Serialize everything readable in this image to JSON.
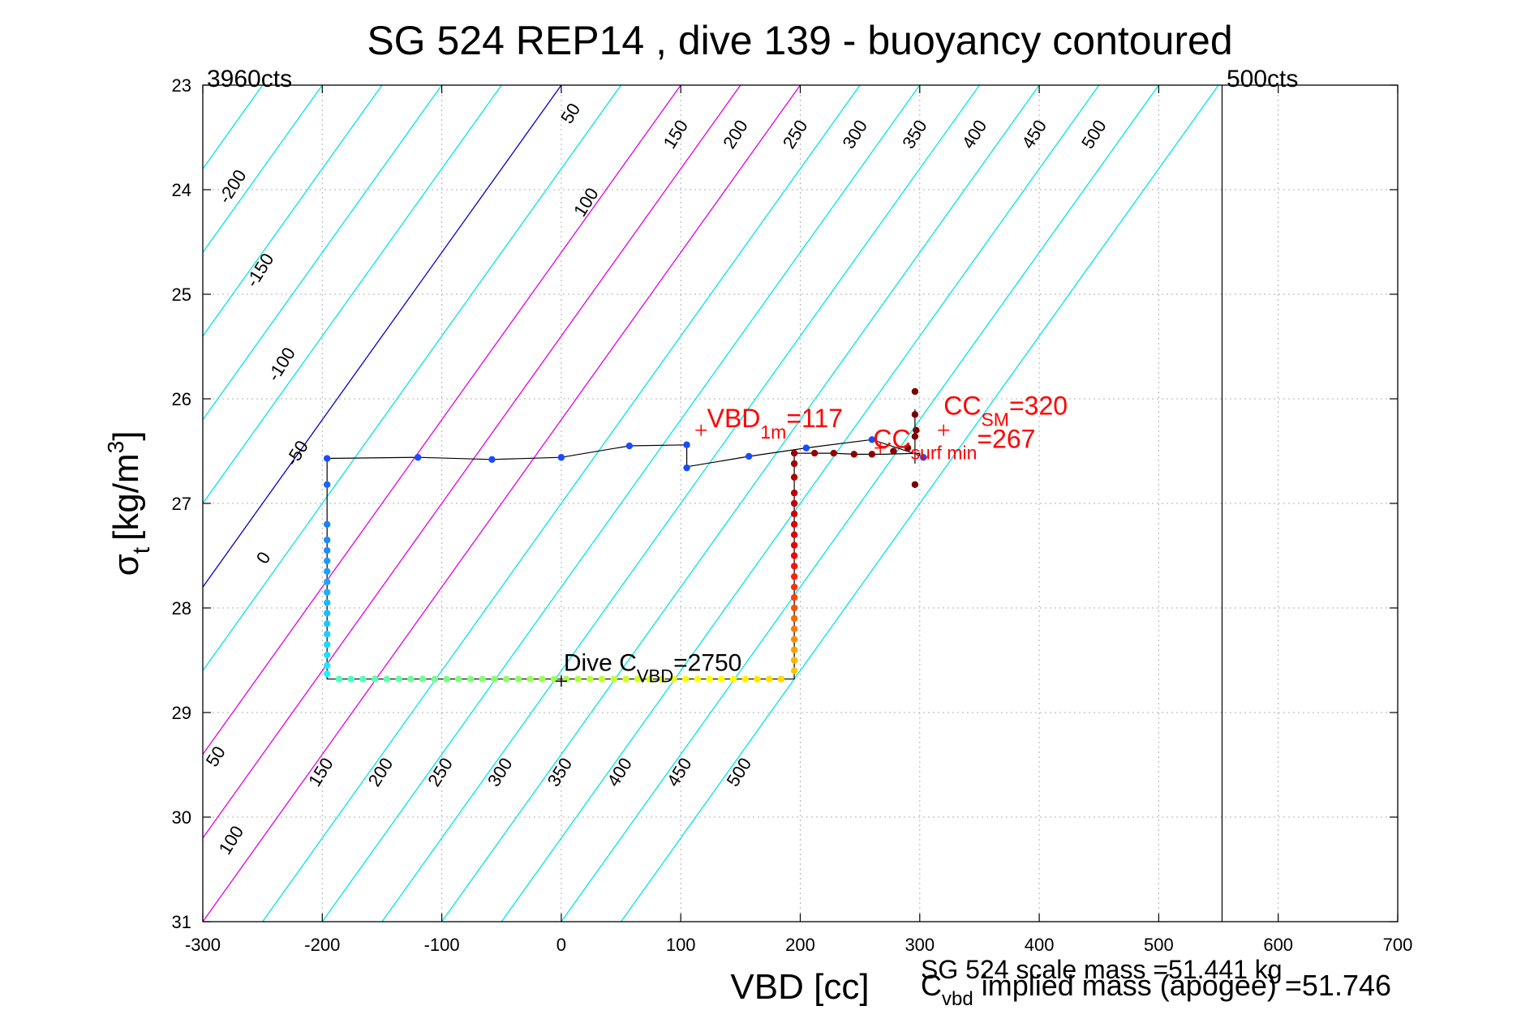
{
  "chart_data": {
    "type": "scatter",
    "title": "SG 524   REP14  , dive 139 - buoyancy contoured",
    "xlabel": "VBD [cc]",
    "ylabel_main": "σ",
    "ylabel_sub": "t",
    "ylabel_unit": "[kg/m",
    "ylabel_sup": "3",
    "ylabel_close": "]",
    "xlim": [
      -300,
      700
    ],
    "ylim": [
      23,
      31
    ],
    "y_reversed": true,
    "grid": true,
    "x_ticks": [
      -300,
      -200,
      -100,
      0,
      100,
      200,
      300,
      400,
      500,
      600,
      700
    ],
    "y_ticks": [
      23,
      24,
      25,
      26,
      27,
      28,
      29,
      30,
      31
    ],
    "counts_left": "3960cts",
    "counts_right": "500cts",
    "counts_right_x": 553,
    "contours": [
      {
        "value": -250,
        "color": "#00e5e5"
      },
      {
        "value": -200,
        "color": "#00e5e5",
        "label": "-200",
        "lab_x": -271,
        "lab_y": 24
      },
      {
        "value": -150,
        "color": "#00e5e5",
        "label": "-150",
        "lab_x": -248,
        "lab_y": 24.8
      },
      {
        "value": -100,
        "color": "#00e5e5",
        "label": "-100",
        "lab_x": -230,
        "lab_y": 25.7
      },
      {
        "value": -50,
        "color": "#00e5e5",
        "label": "-50",
        "lab_x": -217,
        "lab_y": 26.55
      },
      {
        "value": 0,
        "color": "#0000cc",
        "label": "0",
        "lab_x": -245,
        "lab_y": 27.55
      },
      {
        "value": 50,
        "color": "#00e5e5",
        "label": "50",
        "lab_x": 12,
        "lab_y": 23.3
      },
      {
        "value": 50,
        "color": "#00e5e5",
        "label": "50",
        "lab_x": -285,
        "lab_y": 29.45
      },
      {
        "value": 100,
        "color": "#e000e0",
        "label": "100",
        "lab_x": 25,
        "lab_y": 24.15
      },
      {
        "value": 100,
        "color": "#e000e0",
        "label": "100",
        "lab_x": -272,
        "lab_y": 30.25
      },
      {
        "value": 150,
        "color": "#e000e0",
        "label": "150",
        "lab_x": 100,
        "lab_y": 23.5
      },
      {
        "value": 150,
        "color": "#e000e0",
        "label": "150",
        "lab_x": -197,
        "lab_y": 29.6
      },
      {
        "value": 200,
        "color": "#e000e0",
        "label": "200",
        "lab_x": 150,
        "lab_y": 23.5
      },
      {
        "value": 200,
        "color": "#e000e0",
        "label": "200",
        "lab_x": -147,
        "lab_y": 29.6
      },
      {
        "value": 250,
        "color": "#00e5e5",
        "label": "250",
        "lab_x": 200,
        "lab_y": 23.5
      },
      {
        "value": 250,
        "color": "#00e5e5",
        "label": "250",
        "lab_x": -97,
        "lab_y": 29.6
      },
      {
        "value": 300,
        "color": "#00e5e5",
        "label": "300",
        "lab_x": 250,
        "lab_y": 23.5
      },
      {
        "value": 300,
        "color": "#00e5e5",
        "label": "300",
        "lab_x": -47,
        "lab_y": 29.6
      },
      {
        "value": 350,
        "color": "#00e5e5",
        "label": "350",
        "lab_x": 300,
        "lab_y": 23.5
      },
      {
        "value": 350,
        "color": "#00e5e5",
        "label": "350",
        "lab_x": 3,
        "lab_y": 29.6
      },
      {
        "value": 400,
        "color": "#00e5e5",
        "label": "400",
        "lab_x": 350,
        "lab_y": 23.5
      },
      {
        "value": 400,
        "color": "#00e5e5",
        "label": "400",
        "lab_x": 53,
        "lab_y": 29.6
      },
      {
        "value": 450,
        "color": "#00e5e5",
        "label": "450",
        "lab_x": 400,
        "lab_y": 23.5
      },
      {
        "value": 450,
        "color": "#00e5e5",
        "label": "450",
        "lab_x": 103,
        "lab_y": 29.6
      },
      {
        "value": 500,
        "color": "#00e5e5",
        "label": "500",
        "lab_x": 450,
        "lab_y": 23.5
      },
      {
        "value": 500,
        "color": "#00e5e5",
        "label": "500",
        "lab_x": 153,
        "lab_y": 29.6
      },
      {
        "value": 550,
        "color": "#00e5e5"
      }
    ],
    "trajectory": [
      [
        -196,
        26.57
      ],
      [
        -120,
        26.56
      ],
      [
        -58,
        26.58
      ],
      [
        0,
        26.56
      ],
      [
        57,
        26.45
      ],
      [
        105,
        26.44
      ],
      [
        105,
        26.65
      ],
      [
        157,
        26.55
      ],
      [
        205,
        26.47
      ],
      [
        260,
        26.39
      ],
      [
        300,
        26.54
      ],
      [
        300,
        26.52
      ],
      [
        270,
        26.53
      ],
      [
        245,
        26.53
      ],
      [
        228,
        26.52
      ],
      [
        195,
        26.52
      ],
      [
        195,
        28.68
      ],
      [
        -196,
        28.68
      ],
      [
        -196,
        26.57
      ]
    ],
    "dive_points": [
      {
        "x": -196,
        "y": 26.57,
        "color": "#1a4cff"
      },
      {
        "x": -120,
        "y": 26.56,
        "color": "#1a4cff"
      },
      {
        "x": -58,
        "y": 26.58,
        "color": "#1a4cff"
      },
      {
        "x": 0,
        "y": 26.56,
        "color": "#1a4cff"
      },
      {
        "x": 57,
        "y": 26.45,
        "color": "#1a4cff"
      },
      {
        "x": 105,
        "y": 26.44,
        "color": "#1a4cff"
      },
      {
        "x": 105,
        "y": 26.66,
        "color": "#1a4cff"
      },
      {
        "x": 157,
        "y": 26.55,
        "color": "#1a4cff"
      },
      {
        "x": 205,
        "y": 26.47,
        "color": "#1a4cff"
      },
      {
        "x": 260,
        "y": 26.39,
        "color": "#1a4cff"
      },
      {
        "x": 303,
        "y": 26.56,
        "color": "#1a4cff"
      },
      {
        "x": -196,
        "y": 26.82,
        "color": "#1a66ff"
      },
      {
        "x": -196,
        "y": 27.2,
        "color": "#1a80ff"
      },
      {
        "x": -196,
        "y": 27.35,
        "color": "#1a8cff"
      },
      {
        "x": -196,
        "y": 27.45,
        "color": "#1a8cff"
      },
      {
        "x": -196,
        "y": 27.55,
        "color": "#1a99ff"
      },
      {
        "x": -196,
        "y": 27.65,
        "color": "#1aa0ff"
      },
      {
        "x": -196,
        "y": 27.75,
        "color": "#1aa6ff"
      },
      {
        "x": -196,
        "y": 27.85,
        "color": "#1ab0ff"
      },
      {
        "x": -196,
        "y": 27.95,
        "color": "#1ab8ff"
      },
      {
        "x": -196,
        "y": 28.05,
        "color": "#1ac0ff"
      },
      {
        "x": -196,
        "y": 28.15,
        "color": "#1ac8ff"
      },
      {
        "x": -196,
        "y": 28.25,
        "color": "#1ad0ff"
      },
      {
        "x": -196,
        "y": 28.35,
        "color": "#1ad8ff"
      },
      {
        "x": -196,
        "y": 28.45,
        "color": "#1ae0ff"
      },
      {
        "x": -196,
        "y": 28.55,
        "color": "#1ae8ff"
      },
      {
        "x": -196,
        "y": 28.63,
        "color": "#22eeff"
      },
      {
        "x": -186,
        "y": 28.68,
        "color": "#50ffc0"
      },
      {
        "x": -176,
        "y": 28.68,
        "color": "#50ffc0"
      },
      {
        "x": -166,
        "y": 28.68,
        "color": "#55ffb8"
      },
      {
        "x": -156,
        "y": 28.68,
        "color": "#5cffb0"
      },
      {
        "x": -146,
        "y": 28.68,
        "color": "#62ffa8"
      },
      {
        "x": -136,
        "y": 28.68,
        "color": "#68ffa0"
      },
      {
        "x": -126,
        "y": 28.68,
        "color": "#6eff98"
      },
      {
        "x": -116,
        "y": 28.68,
        "color": "#72ff92"
      },
      {
        "x": -106,
        "y": 28.68,
        "color": "#76ff8c"
      },
      {
        "x": -96,
        "y": 28.68,
        "color": "#7aff86"
      },
      {
        "x": -86,
        "y": 28.68,
        "color": "#7eff80"
      },
      {
        "x": -76,
        "y": 28.68,
        "color": "#82ff7a"
      },
      {
        "x": -66,
        "y": 28.68,
        "color": "#86ff74"
      },
      {
        "x": -56,
        "y": 28.68,
        "color": "#8aff6e"
      },
      {
        "x": -46,
        "y": 28.68,
        "color": "#8eff68"
      },
      {
        "x": -36,
        "y": 28.68,
        "color": "#92ff62"
      },
      {
        "x": -26,
        "y": 28.68,
        "color": "#96ff5c"
      },
      {
        "x": -16,
        "y": 28.68,
        "color": "#9aff56"
      },
      {
        "x": -6,
        "y": 28.68,
        "color": "#a0ff50"
      },
      {
        "x": 4,
        "y": 28.68,
        "color": "#a6ff4a"
      },
      {
        "x": 14,
        "y": 28.68,
        "color": "#aeff44"
      },
      {
        "x": 24,
        "y": 28.68,
        "color": "#b6ff3e"
      },
      {
        "x": 34,
        "y": 28.68,
        "color": "#bcff38"
      },
      {
        "x": 44,
        "y": 28.68,
        "color": "#c4ff32"
      },
      {
        "x": 54,
        "y": 28.68,
        "color": "#ccff2c"
      },
      {
        "x": 64,
        "y": 28.68,
        "color": "#d4ff26"
      },
      {
        "x": 74,
        "y": 28.68,
        "color": "#dcff20"
      },
      {
        "x": 84,
        "y": 28.68,
        "color": "#e4ff1a"
      },
      {
        "x": 94,
        "y": 28.68,
        "color": "#ecff14"
      },
      {
        "x": 104,
        "y": 28.68,
        "color": "#f2ff10"
      },
      {
        "x": 114,
        "y": 28.68,
        "color": "#f6ff0c"
      },
      {
        "x": 124,
        "y": 28.68,
        "color": "#faff08"
      },
      {
        "x": 134,
        "y": 28.68,
        "color": "#ffff04"
      },
      {
        "x": 144,
        "y": 28.68,
        "color": "#ffff00"
      },
      {
        "x": 154,
        "y": 28.68,
        "color": "#fff000"
      },
      {
        "x": 164,
        "y": 28.68,
        "color": "#ffe800"
      },
      {
        "x": 174,
        "y": 28.68,
        "color": "#ffe000"
      },
      {
        "x": 184,
        "y": 28.68,
        "color": "#ffd800"
      },
      {
        "x": 195,
        "y": 28.6,
        "color": "#ffc800"
      },
      {
        "x": 195,
        "y": 28.5,
        "color": "#ffb400"
      },
      {
        "x": 195,
        "y": 28.4,
        "color": "#ffa000"
      },
      {
        "x": 195,
        "y": 28.3,
        "color": "#ff8c00"
      },
      {
        "x": 195,
        "y": 28.2,
        "color": "#ff7800"
      },
      {
        "x": 195,
        "y": 28.1,
        "color": "#ff6400"
      },
      {
        "x": 195,
        "y": 28.0,
        "color": "#ff5000"
      },
      {
        "x": 195,
        "y": 27.9,
        "color": "#ff4000"
      },
      {
        "x": 195,
        "y": 27.8,
        "color": "#ff3000"
      },
      {
        "x": 195,
        "y": 27.7,
        "color": "#ff2000"
      },
      {
        "x": 195,
        "y": 27.6,
        "color": "#ff1000"
      },
      {
        "x": 195,
        "y": 27.5,
        "color": "#f80000"
      },
      {
        "x": 195,
        "y": 27.4,
        "color": "#ee0000"
      },
      {
        "x": 195,
        "y": 27.3,
        "color": "#e40000"
      },
      {
        "x": 195,
        "y": 27.2,
        "color": "#da0000"
      },
      {
        "x": 195,
        "y": 27.1,
        "color": "#d00000"
      },
      {
        "x": 195,
        "y": 27.0,
        "color": "#c60000"
      },
      {
        "x": 195,
        "y": 26.9,
        "color": "#bc0000"
      },
      {
        "x": 195,
        "y": 26.75,
        "color": "#b00000"
      },
      {
        "x": 195,
        "y": 26.62,
        "color": "#a60000"
      },
      {
        "x": 195,
        "y": 26.52,
        "color": "#9c0000"
      },
      {
        "x": 212,
        "y": 26.52,
        "color": "#980000"
      },
      {
        "x": 228,
        "y": 26.52,
        "color": "#940000"
      },
      {
        "x": 245,
        "y": 26.53,
        "color": "#900000"
      },
      {
        "x": 260,
        "y": 26.53,
        "color": "#8c0000"
      },
      {
        "x": 278,
        "y": 26.5,
        "color": "#880000"
      },
      {
        "x": 290,
        "y": 26.47,
        "color": "#840000"
      },
      {
        "x": 297,
        "y": 26.3,
        "color": "#800000"
      },
      {
        "x": 296,
        "y": 26.15,
        "color": "#800000"
      },
      {
        "x": 296,
        "y": 25.93,
        "color": "#7c0000"
      },
      {
        "x": 296,
        "y": 26.36,
        "color": "#800000"
      },
      {
        "x": 296,
        "y": 26.82,
        "color": "#7a0000"
      }
    ],
    "vertical_line_x": 296,
    "vertical_line_ymin": 26.1,
    "vertical_line_ymax": 26.62,
    "markers": [
      {
        "x": 117,
        "y": 26.3,
        "color": "#ff0000",
        "label": "VBD",
        "sub": "1m",
        "suffix": "=117",
        "lab_x": 122,
        "lab_y": 26.27,
        "font": 32
      },
      {
        "x": 320,
        "y": 26.3,
        "color": "#ff0000",
        "label": "CC",
        "sub": "SM",
        "suffix": "=320",
        "lab_x": 320,
        "lab_y": 26.15,
        "font": 32
      },
      {
        "x": 267,
        "y": 26.47,
        "color": "#ff0000",
        "label": "CC",
        "sub": "surf min",
        "suffix": "=267",
        "lab_x": 261,
        "lab_y": 26.47,
        "font": 32
      },
      {
        "x": 0,
        "y": 28.7,
        "color": "#000000",
        "label": "Dive C",
        "sub": "VBD",
        "suffix": "=2750",
        "lab_x": 2,
        "lab_y": 28.6,
        "font": 30
      }
    ],
    "footnote_1": "SG 524 scale mass =51.441 kg",
    "footnote_2_main": "C",
    "footnote_2_sub": "vbd",
    "footnote_2_rest": " implied mass (apogee) =51.746"
  }
}
